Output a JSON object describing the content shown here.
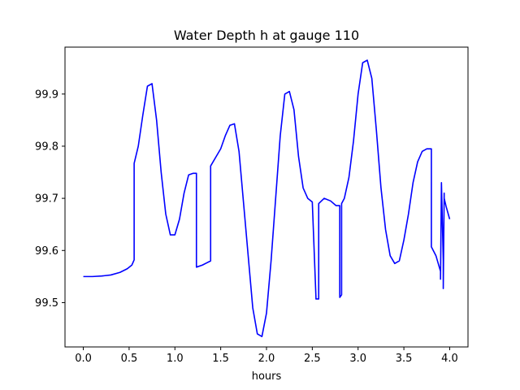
{
  "chart_data": {
    "type": "line",
    "title": "Water Depth h at gauge 110",
    "xlabel": "hours",
    "ylabel": "",
    "xlim": [
      -0.2,
      4.2
    ],
    "ylim": [
      99.415,
      99.99
    ],
    "x_ticks": [
      0.0,
      0.5,
      1.0,
      1.5,
      2.0,
      2.5,
      3.0,
      3.5,
      4.0
    ],
    "x_tick_labels": [
      "0.0",
      "0.5",
      "1.0",
      "1.5",
      "2.0",
      "2.5",
      "3.0",
      "3.5",
      "4.0"
    ],
    "y_ticks": [
      99.5,
      99.6,
      99.7,
      99.8,
      99.9
    ],
    "y_tick_labels": [
      "99.5",
      "99.6",
      "99.7",
      "99.8",
      "99.9"
    ],
    "grid": false,
    "series": [
      {
        "name": "",
        "color": "#0000ff",
        "x": [
          0.0,
          0.1,
          0.2,
          0.3,
          0.4,
          0.48,
          0.53,
          0.555,
          0.555,
          0.6,
          0.65,
          0.7,
          0.75,
          0.8,
          0.85,
          0.9,
          0.95,
          1.0,
          1.05,
          1.1,
          1.15,
          1.2,
          1.235,
          1.235,
          1.3,
          1.39,
          1.39,
          1.45,
          1.5,
          1.55,
          1.6,
          1.65,
          1.7,
          1.75,
          1.8,
          1.85,
          1.9,
          1.95,
          2.0,
          2.05,
          2.1,
          2.15,
          2.2,
          2.25,
          2.3,
          2.35,
          2.4,
          2.45,
          2.5,
          2.54,
          2.54,
          2.57,
          2.57,
          2.63,
          2.7,
          2.76,
          2.8,
          2.8,
          2.82,
          2.82,
          2.85,
          2.9,
          2.95,
          3.0,
          3.05,
          3.1,
          3.15,
          3.2,
          3.25,
          3.3,
          3.35,
          3.4,
          3.45,
          3.5,
          3.55,
          3.6,
          3.65,
          3.7,
          3.75,
          3.8,
          3.8,
          3.85,
          3.9,
          3.9,
          3.91,
          3.93,
          3.93,
          3.94,
          3.94,
          3.96,
          4.0
        ],
        "y": [
          99.55,
          99.55,
          99.551,
          99.553,
          99.558,
          99.565,
          99.572,
          99.582,
          99.767,
          99.8,
          99.86,
          99.915,
          99.92,
          99.85,
          99.75,
          99.67,
          99.63,
          99.63,
          99.66,
          99.71,
          99.745,
          99.748,
          99.748,
          99.568,
          99.572,
          99.58,
          99.762,
          99.78,
          99.795,
          99.82,
          99.84,
          99.843,
          99.79,
          99.69,
          99.59,
          99.49,
          99.44,
          99.435,
          99.48,
          99.58,
          99.7,
          99.82,
          99.9,
          99.905,
          99.87,
          99.78,
          99.72,
          99.7,
          99.693,
          99.51,
          99.507,
          99.507,
          99.69,
          99.7,
          99.695,
          99.686,
          99.686,
          99.51,
          99.515,
          99.69,
          99.7,
          99.74,
          99.81,
          99.9,
          99.96,
          99.965,
          99.93,
          99.83,
          99.72,
          99.64,
          99.59,
          99.575,
          99.58,
          99.62,
          99.67,
          99.73,
          99.77,
          99.79,
          99.795,
          99.795,
          99.607,
          99.59,
          99.56,
          99.545,
          99.73,
          99.58,
          99.527,
          99.71,
          99.7,
          99.685,
          99.66
        ]
      }
    ]
  }
}
